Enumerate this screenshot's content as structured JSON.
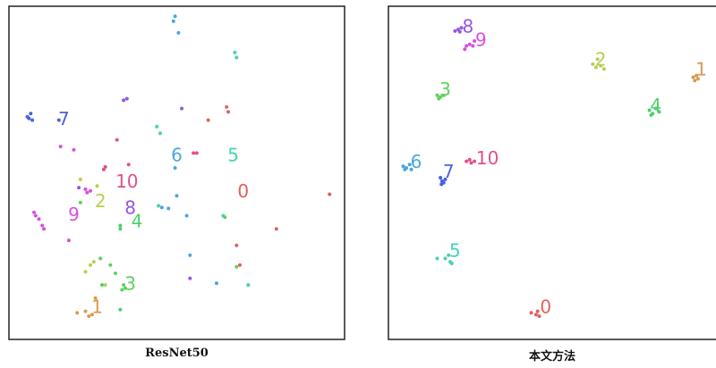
{
  "chart_data": [
    {
      "type": "scatter",
      "title": "ResNet50",
      "xlim": [
        0,
        100
      ],
      "ylim": [
        0,
        100
      ],
      "class_colors": {
        "0": "#e0605a",
        "1": "#d99a4e",
        "2": "#b6cf4e",
        "3": "#5fd15a",
        "4": "#4bd06a",
        "5": "#45d1b5",
        "6": "#4aa6de",
        "7": "#4a62e0",
        "8": "#9656e0",
        "9": "#d84fe0",
        "10": "#e0508c"
      },
      "labels": [
        {
          "text": "7",
          "x": 16,
          "y": 66
        },
        {
          "text": "6",
          "x": 50,
          "y": 55
        },
        {
          "text": "5",
          "x": 67,
          "y": 55
        },
        {
          "text": "0",
          "x": 70,
          "y": 44
        },
        {
          "text": "10",
          "x": 35,
          "y": 47
        },
        {
          "text": "2",
          "x": 27,
          "y": 41
        },
        {
          "text": "9",
          "x": 19,
          "y": 37
        },
        {
          "text": "8",
          "x": 36,
          "y": 39
        },
        {
          "text": "4",
          "x": 38,
          "y": 35
        },
        {
          "text": "3",
          "x": 36,
          "y": 16
        },
        {
          "text": "1",
          "x": 26,
          "y": 9
        }
      ],
      "points": [
        {
          "c": "6",
          "x": 49,
          "y": 96
        },
        {
          "c": "6",
          "x": 50.5,
          "y": 92.5
        },
        {
          "c": "6",
          "x": 49.5,
          "y": 97.5
        },
        {
          "c": "5",
          "x": 67.5,
          "y": 86.5
        },
        {
          "c": "5",
          "x": 68,
          "y": 85
        },
        {
          "c": "8",
          "x": 34,
          "y": 72
        },
        {
          "c": "8",
          "x": 35,
          "y": 72.5
        },
        {
          "c": "8",
          "x": 51.5,
          "y": 69.5
        },
        {
          "c": "0",
          "x": 65,
          "y": 70
        },
        {
          "c": "0",
          "x": 65.5,
          "y": 68.5
        },
        {
          "c": "0",
          "x": 59.5,
          "y": 66
        },
        {
          "c": "0",
          "x": 96,
          "y": 43.5
        },
        {
          "c": "0",
          "x": 80,
          "y": 33
        },
        {
          "c": "0",
          "x": 68,
          "y": 28
        },
        {
          "c": "0",
          "x": 69,
          "y": 22
        },
        {
          "c": "7",
          "x": 5,
          "y": 67
        },
        {
          "c": "7",
          "x": 6,
          "y": 68
        },
        {
          "c": "7",
          "x": 6.5,
          "y": 66
        },
        {
          "c": "7",
          "x": 5.5,
          "y": 66.5
        },
        {
          "c": "7",
          "x": 14.5,
          "y": 66
        },
        {
          "c": "5",
          "x": 44,
          "y": 64
        },
        {
          "c": "5",
          "x": 45,
          "y": 62
        },
        {
          "c": "5",
          "x": 44.5,
          "y": 40
        },
        {
          "c": "5",
          "x": 64,
          "y": 37
        },
        {
          "c": "5",
          "x": 71.5,
          "y": 16
        },
        {
          "c": "10",
          "x": 32,
          "y": 60
        },
        {
          "c": "10",
          "x": 35.5,
          "y": 52.5
        },
        {
          "c": "10",
          "x": 28,
          "y": 51
        },
        {
          "c": "10",
          "x": 28.5,
          "y": 51.8
        },
        {
          "c": "10",
          "x": 55,
          "y": 56
        },
        {
          "c": "10",
          "x": 56,
          "y": 56
        },
        {
          "c": "9",
          "x": 15,
          "y": 58
        },
        {
          "c": "9",
          "x": 19,
          "y": 57
        },
        {
          "c": "9",
          "x": 7.5,
          "y": 37
        },
        {
          "c": "9",
          "x": 8.5,
          "y": 36
        },
        {
          "c": "9",
          "x": 9.5,
          "y": 34
        },
        {
          "c": "9",
          "x": 10,
          "y": 33
        },
        {
          "c": "9",
          "x": 7,
          "y": 38
        },
        {
          "c": "9",
          "x": 17.5,
          "y": 29.5
        },
        {
          "c": "9",
          "x": 22.5,
          "y": 45
        },
        {
          "c": "9",
          "x": 23,
          "y": 44
        },
        {
          "c": "9",
          "x": 24,
          "y": 44.5
        },
        {
          "c": "6",
          "x": 49.5,
          "y": 51.5
        },
        {
          "c": "6",
          "x": 50,
          "y": 43
        },
        {
          "c": "6",
          "x": 45.5,
          "y": 39.5
        },
        {
          "c": "6",
          "x": 47.5,
          "y": 39.2
        },
        {
          "c": "6",
          "x": 53,
          "y": 37
        },
        {
          "c": "6",
          "x": 54,
          "y": 25
        },
        {
          "c": "6",
          "x": 62,
          "y": 16.5
        },
        {
          "c": "2",
          "x": 21,
          "y": 48
        },
        {
          "c": "2",
          "x": 26,
          "y": 46
        },
        {
          "c": "2",
          "x": 25,
          "y": 23
        },
        {
          "c": "2",
          "x": 24,
          "y": 22
        },
        {
          "c": "2",
          "x": 22.5,
          "y": 20
        },
        {
          "c": "2",
          "x": 28.5,
          "y": 16
        },
        {
          "c": "3",
          "x": 27,
          "y": 24
        },
        {
          "c": "3",
          "x": 30,
          "y": 22
        },
        {
          "c": "3",
          "x": 31.5,
          "y": 19.5
        },
        {
          "c": "3",
          "x": 34,
          "y": 16
        },
        {
          "c": "3",
          "x": 33.5,
          "y": 14.5
        },
        {
          "c": "3",
          "x": 34.5,
          "y": 15
        },
        {
          "c": "3",
          "x": 21,
          "y": 41
        },
        {
          "c": "3",
          "x": 64.5,
          "y": 36.5
        },
        {
          "c": "3",
          "x": 68,
          "y": 21.5
        },
        {
          "c": "4",
          "x": 33,
          "y": 33
        },
        {
          "c": "4",
          "x": 33,
          "y": 34
        },
        {
          "c": "4",
          "x": 27.5,
          "y": 16
        },
        {
          "c": "4",
          "x": 33,
          "y": 8.5
        },
        {
          "c": "1",
          "x": 20,
          "y": 7.5
        },
        {
          "c": "1",
          "x": 22.5,
          "y": 8
        },
        {
          "c": "1",
          "x": 23.5,
          "y": 6.5
        },
        {
          "c": "1",
          "x": 24.5,
          "y": 7
        },
        {
          "c": "1",
          "x": 25.5,
          "y": 12
        },
        {
          "c": "8",
          "x": 54,
          "y": 18
        },
        {
          "c": "8",
          "x": 20.5,
          "y": 45.5
        }
      ]
    },
    {
      "type": "scatter",
      "title": "本文方法",
      "xlim": [
        0,
        100
      ],
      "ylim": [
        0,
        100
      ],
      "class_colors": {
        "0": "#e0605a",
        "1": "#d99a4e",
        "2": "#b6cf4e",
        "3": "#5fd15a",
        "4": "#4bd06a",
        "5": "#45d1b5",
        "6": "#4aa6de",
        "7": "#4a62e0",
        "8": "#9656e0",
        "9": "#d84fe0",
        "10": "#e0508c"
      },
      "labels": [
        {
          "text": "8",
          "x": 24,
          "y": 94
        },
        {
          "text": "9",
          "x": 28,
          "y": 90
        },
        {
          "text": "2",
          "x": 65,
          "y": 84
        },
        {
          "text": "1",
          "x": 96,
          "y": 81
        },
        {
          "text": "3",
          "x": 17,
          "y": 75
        },
        {
          "text": "4",
          "x": 82,
          "y": 70
        },
        {
          "text": "6",
          "x": 8,
          "y": 53
        },
        {
          "text": "7",
          "x": 18,
          "y": 50
        },
        {
          "text": "10",
          "x": 30,
          "y": 54
        },
        {
          "text": "5",
          "x": 20,
          "y": 26
        },
        {
          "text": "0",
          "x": 48,
          "y": 9
        }
      ],
      "points": [
        {
          "c": "8",
          "x": 20,
          "y": 93
        },
        {
          "c": "8",
          "x": 21,
          "y": 93.5
        },
        {
          "c": "8",
          "x": 22,
          "y": 94
        },
        {
          "c": "8",
          "x": 21.5,
          "y": 92.8
        },
        {
          "c": "9",
          "x": 23.5,
          "y": 88.5
        },
        {
          "c": "9",
          "x": 24.5,
          "y": 89
        },
        {
          "c": "9",
          "x": 25.5,
          "y": 88.5
        },
        {
          "c": "9",
          "x": 23,
          "y": 87.5
        },
        {
          "c": "9",
          "x": 26,
          "y": 90
        },
        {
          "c": "2",
          "x": 62.5,
          "y": 83
        },
        {
          "c": "2",
          "x": 63.5,
          "y": 82
        },
        {
          "c": "2",
          "x": 65,
          "y": 82.5
        },
        {
          "c": "2",
          "x": 66,
          "y": 81.5
        },
        {
          "c": "2",
          "x": 64,
          "y": 84.5
        },
        {
          "c": "1",
          "x": 93.5,
          "y": 79
        },
        {
          "c": "1",
          "x": 94.5,
          "y": 79.5
        },
        {
          "c": "1",
          "x": 95,
          "y": 78.5
        },
        {
          "c": "1",
          "x": 94,
          "y": 78
        },
        {
          "c": "3",
          "x": 14.5,
          "y": 73.5
        },
        {
          "c": "3",
          "x": 15.5,
          "y": 73
        },
        {
          "c": "3",
          "x": 16.5,
          "y": 73.5
        },
        {
          "c": "3",
          "x": 15,
          "y": 72.5
        },
        {
          "c": "4",
          "x": 80,
          "y": 69
        },
        {
          "c": "4",
          "x": 81,
          "y": 68
        },
        {
          "c": "4",
          "x": 82,
          "y": 69.5
        },
        {
          "c": "4",
          "x": 80.5,
          "y": 67.5
        },
        {
          "c": "4",
          "x": 83,
          "y": 68.5
        },
        {
          "c": "6",
          "x": 4,
          "y": 52
        },
        {
          "c": "6",
          "x": 5,
          "y": 51.5
        },
        {
          "c": "6",
          "x": 6,
          "y": 52.5
        },
        {
          "c": "6",
          "x": 4.5,
          "y": 51
        },
        {
          "c": "6",
          "x": 6.5,
          "y": 51
        },
        {
          "c": "7",
          "x": 15.5,
          "y": 48.5
        },
        {
          "c": "7",
          "x": 16,
          "y": 47.5
        },
        {
          "c": "7",
          "x": 16.5,
          "y": 47
        },
        {
          "c": "7",
          "x": 17,
          "y": 48
        },
        {
          "c": "7",
          "x": 15.8,
          "y": 46.5
        },
        {
          "c": "10",
          "x": 23.5,
          "y": 53.5
        },
        {
          "c": "10",
          "x": 24.5,
          "y": 54
        },
        {
          "c": "10",
          "x": 25,
          "y": 53
        },
        {
          "c": "10",
          "x": 26,
          "y": 53.5
        },
        {
          "c": "5",
          "x": 14.5,
          "y": 24
        },
        {
          "c": "5",
          "x": 17,
          "y": 24
        },
        {
          "c": "5",
          "x": 18.5,
          "y": 23
        },
        {
          "c": "5",
          "x": 19,
          "y": 22.5
        },
        {
          "c": "5",
          "x": 18,
          "y": 25
        },
        {
          "c": "0",
          "x": 43.5,
          "y": 7.5
        },
        {
          "c": "0",
          "x": 45,
          "y": 7
        },
        {
          "c": "0",
          "x": 46,
          "y": 6.5
        },
        {
          "c": "0",
          "x": 45.5,
          "y": 8
        }
      ]
    }
  ]
}
